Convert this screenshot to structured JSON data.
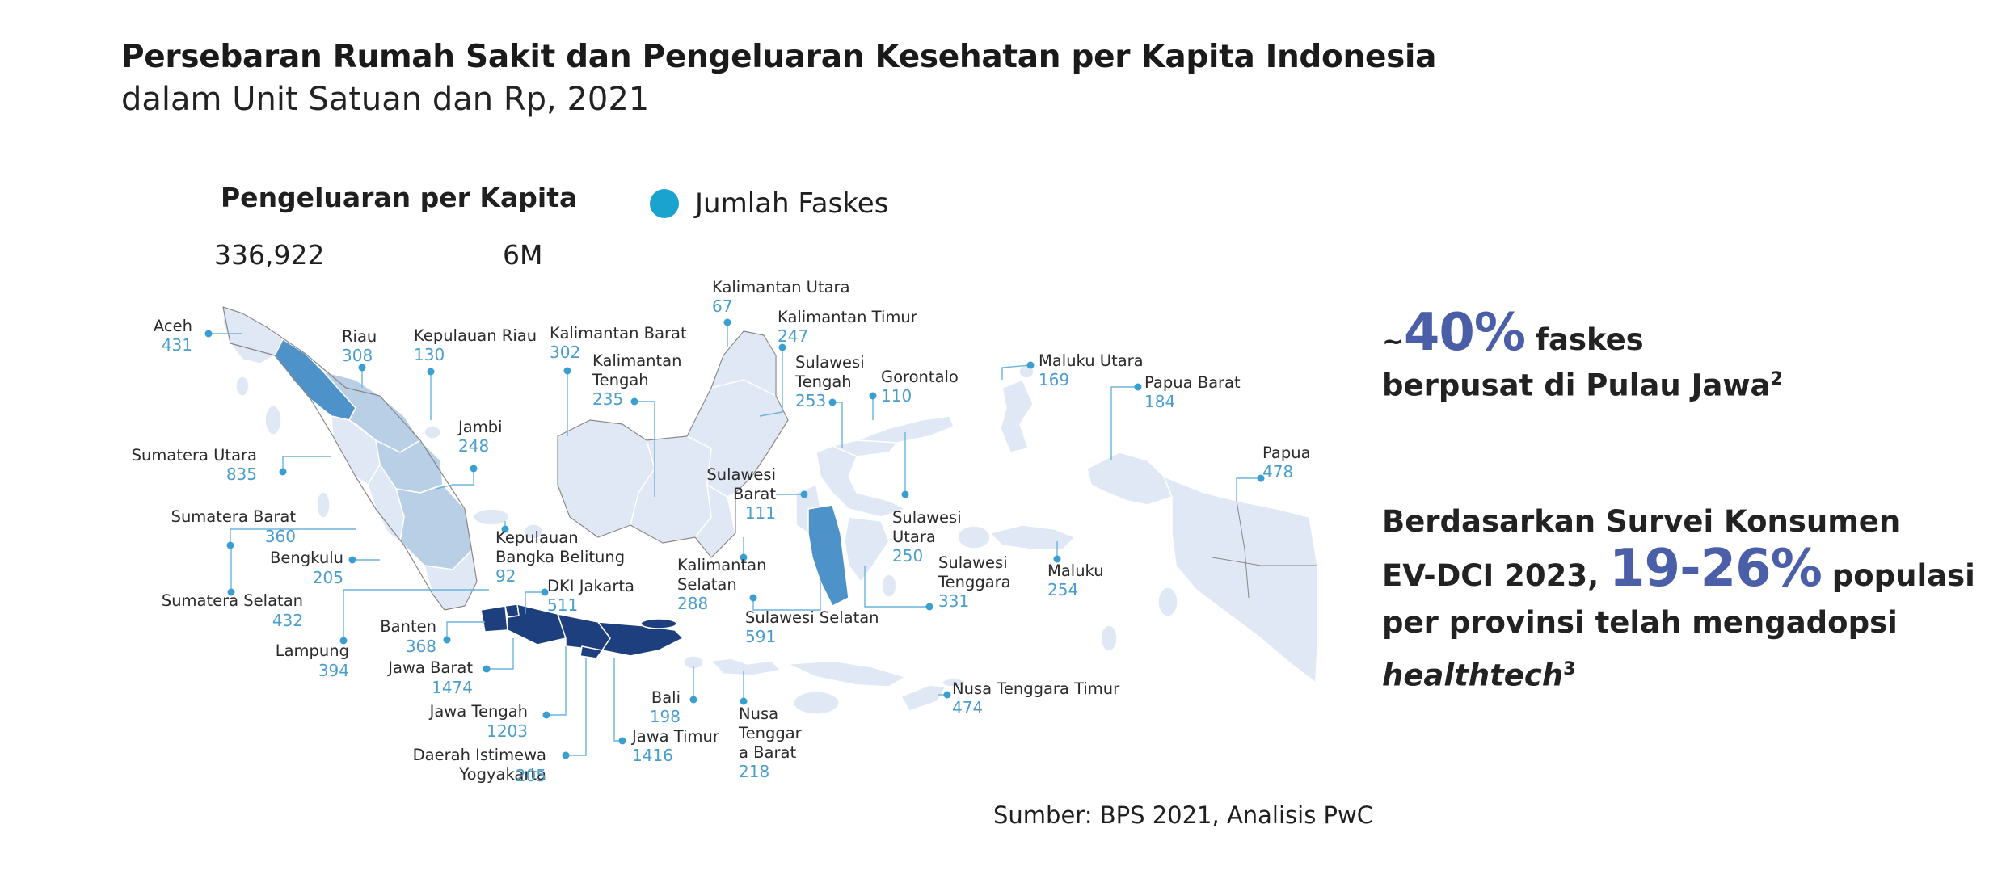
{
  "title": "Persebaran Rumah Sakit dan Pengeluaran Kesehatan per Kapita Indonesia",
  "subtitle": "dalam Unit Satuan dan Rp, 2021",
  "legend": {
    "title": "Pengeluaran per Kapita",
    "min": "336,922",
    "max": "6M",
    "dot_label": "Jumlah Faskes",
    "dot_color": "#1ba3d0"
  },
  "colors": {
    "label_value": "#4a9dcc",
    "leader_line": "#6ab4dc",
    "marker": "#3a9fd0",
    "stat_accent": "#4a5fa8",
    "map_light": "#dfe8f4",
    "map_mid": "#b9cfe6",
    "map_strong": "#4d93c9",
    "map_dark": "#1e3f7d",
    "map_stroke": "#ffffff",
    "outline": "#888888"
  },
  "map_labels": [
    {
      "id": "aceh",
      "name": "Aceh",
      "value": "431"
    },
    {
      "id": "riau",
      "name": "Riau",
      "value": "308"
    },
    {
      "id": "kepulauan-riau",
      "name": "Kepulauan Riau",
      "value": "130"
    },
    {
      "id": "kalimantan-barat",
      "name": "Kalimantan Barat",
      "value": "302"
    },
    {
      "id": "kalimantan-utara",
      "name": "Kalimantan Utara",
      "value": "67"
    },
    {
      "id": "kalimantan-timur",
      "name": "Kalimantan Timur",
      "value": "247"
    },
    {
      "id": "kalimantan-tengah",
      "name": "Kalimantan Tengah",
      "value": "235"
    },
    {
      "id": "sulawesi-tengah",
      "name": "Sulawesi Tengah",
      "value": "253"
    },
    {
      "id": "gorontalo",
      "name": "Gorontalo",
      "value": "110"
    },
    {
      "id": "maluku-utara",
      "name": "Maluku Utara",
      "value": "169"
    },
    {
      "id": "papua-barat",
      "name": "Papua Barat",
      "value": "184"
    },
    {
      "id": "papua",
      "name": "Papua",
      "value": "478"
    },
    {
      "id": "sumatera-utara",
      "name": "Sumatera Utara",
      "value": "835"
    },
    {
      "id": "jambi",
      "name": "Jambi",
      "value": "248"
    },
    {
      "id": "sulawesi-barat",
      "name": "Sulawesi Barat",
      "value": "111"
    },
    {
      "id": "sumatera-barat",
      "name": "Sumatera Barat",
      "value": "360"
    },
    {
      "id": "kepulauan-bangka-belitung",
      "name": "Kepulauan Bangka Belitung",
      "value": "92"
    },
    {
      "id": "bengkulu",
      "name": "Bengkulu",
      "value": "205"
    },
    {
      "id": "sulawesi-utara",
      "name": "Sulawesi Utara",
      "value": "250"
    },
    {
      "id": "kalimantan-selatan",
      "name": "Kalimantan Selatan",
      "value": "288"
    },
    {
      "id": "sulawesi-tenggara",
      "name": "Sulawesi Tenggara",
      "value": "331"
    },
    {
      "id": "maluku",
      "name": "Maluku",
      "value": "254"
    },
    {
      "id": "sumatera-selatan",
      "name": "Sumatera Selatan",
      "value": "432"
    },
    {
      "id": "dki-jakarta",
      "name": "DKI Jakarta",
      "value": "511"
    },
    {
      "id": "sulawesi-selatan",
      "name": "Sulawesi Selatan",
      "value": "591"
    },
    {
      "id": "banten",
      "name": "Banten",
      "value": "368"
    },
    {
      "id": "lampung",
      "name": "Lampung",
      "value": "394"
    },
    {
      "id": "jawa-barat",
      "name": "Jawa Barat",
      "value": "1474"
    },
    {
      "id": "jawa-tengah",
      "name": "Jawa Tengah",
      "value": "1203"
    },
    {
      "id": "bali",
      "name": "Bali",
      "value": "198"
    },
    {
      "id": "nusa-tenggara-barat",
      "name": "Nusa Tenggara Barat",
      "value": "218"
    },
    {
      "id": "nusa-tenggara-timur",
      "name": "Nusa Tenggara Timur",
      "value": "474"
    },
    {
      "id": "jawa-timur",
      "name": "Jawa Timur",
      "value": "1416"
    },
    {
      "id": "daerah-istimewa-yogyakarta",
      "name": "Daerah Istimewa Yogyakarta",
      "value": "205"
    }
  ],
  "stats": {
    "s1_tilde": "~",
    "s1_big": "40%",
    "s1_line1_rest": " faskes",
    "s1_line2": "berpusat di Pulau Jawa",
    "s1_sup": "2",
    "s2_line1": "Berdasarkan Survei Konsumen",
    "s2_line2_a": "EV-DCI 2023,",
    "s2_big": "19-26%",
    "s2_line2_b": " populasi",
    "s2_line3": "per provinsi telah mengadopsi",
    "s2_line4": "healthtech",
    "s2_sup": "3"
  },
  "source": "Sumber: BPS 2021, Analisis PwC"
}
